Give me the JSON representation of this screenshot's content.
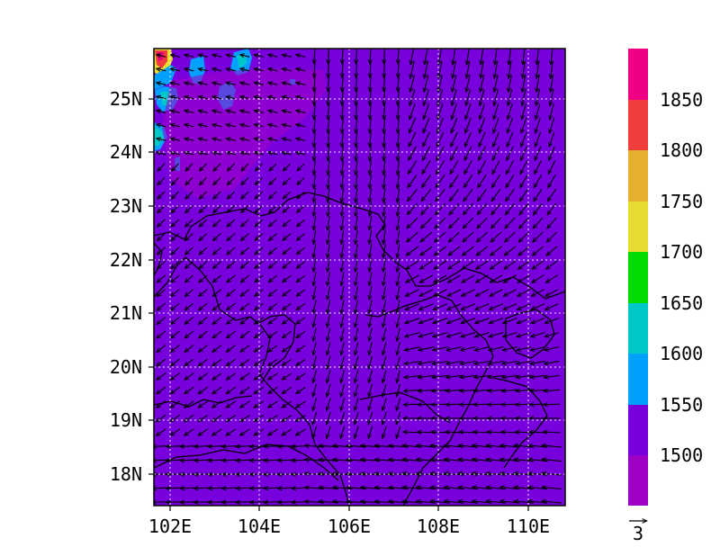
{
  "chart_data": {
    "type": "heatmap",
    "title": "",
    "xlabel": "",
    "ylabel": "",
    "xlim": [
      101.6,
      110.8
    ],
    "ylim": [
      17.4,
      26.0
    ],
    "x_ticks": [
      102,
      104,
      106,
      108,
      110
    ],
    "x_tick_labels": [
      "102E",
      "104E",
      "106E",
      "108E",
      "110E"
    ],
    "y_ticks": [
      18,
      19,
      20,
      21,
      22,
      23,
      24,
      25
    ],
    "y_tick_labels": [
      "18N",
      "19N",
      "20N",
      "21N",
      "22N",
      "23N",
      "24N",
      "25N"
    ],
    "grid": true,
    "background_value_range": [
      1450,
      1550
    ],
    "colorbar": {
      "levels": [
        "1500",
        "1550",
        "1600",
        "1650",
        "1700",
        "1750",
        "1800",
        "1850"
      ],
      "colors": [
        "#9f00c5",
        "#7800dc",
        "#00a0ff",
        "#00c8c8",
        "#00dc00",
        "#e6dc32",
        "#e6af2d",
        "#f03c3c",
        "#f00082"
      ]
    },
    "high_value_patches": [
      {
        "lon": 101.8,
        "lat": 25.8,
        "level": "1800+"
      },
      {
        "lon": 102.3,
        "lat": 25.0,
        "level": "1550-1600"
      },
      {
        "lon": 101.7,
        "lat": 24.3,
        "level": "1550-1600"
      },
      {
        "lon": 103.4,
        "lat": 25.1,
        "level": "1550-1600"
      },
      {
        "lon": 103.8,
        "lat": 25.8,
        "level": "1550-1600"
      }
    ],
    "wind_reference": {
      "value": "3"
    }
  }
}
